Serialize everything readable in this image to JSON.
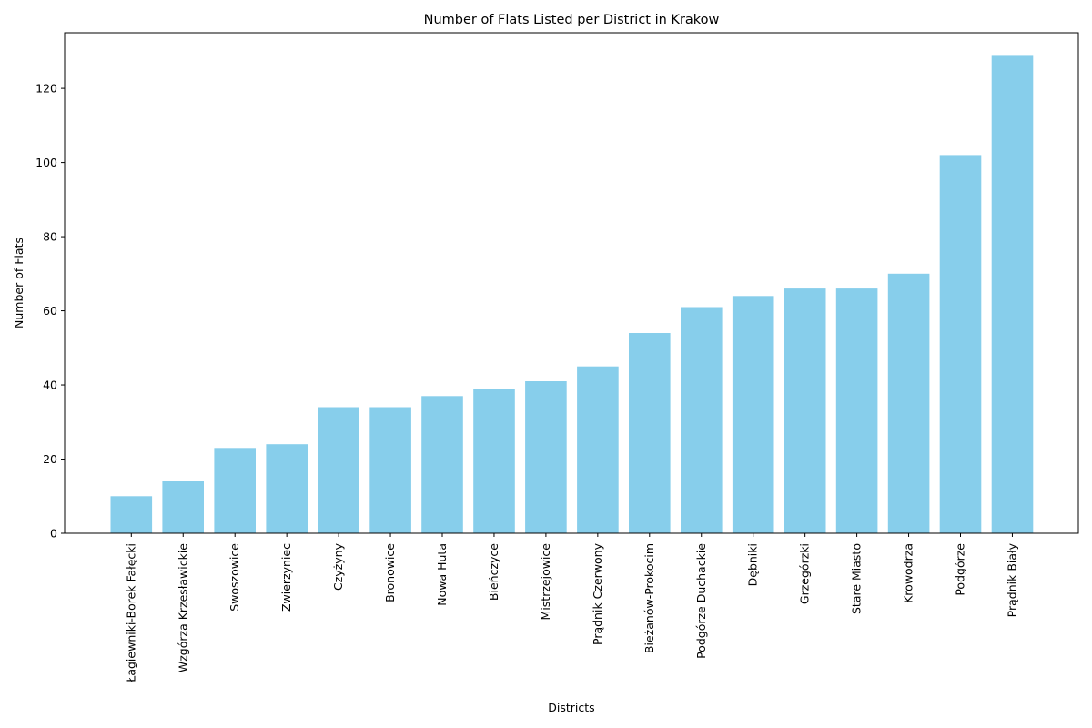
{
  "chart_data": {
    "type": "bar",
    "title": "Number of Flats Listed per District in Krakow",
    "xlabel": "Districts",
    "ylabel": "Number of Flats",
    "ylim": [
      0,
      135
    ],
    "yticks": [
      0,
      20,
      40,
      60,
      80,
      100,
      120
    ],
    "bar_color": "#87ceeb",
    "grid": false,
    "categories": [
      "Łagiewniki-Borek Fałęcki",
      "Wzgórza Krzesławickie",
      "Swoszowice",
      "Zwierzyniec",
      "Czyżyny",
      "Bronowice",
      "Nowa Huta",
      "Bieńczyce",
      "Mistrzejowice",
      "Prądnik Czerwony",
      "Bieżanów-Prokocim",
      "Podgórze Duchackie",
      "Dębniki",
      "Grzegórzki",
      "Stare Miasto",
      "Krowodrza",
      "Podgórze",
      "Prądnik Biały"
    ],
    "values": [
      10,
      14,
      23,
      24,
      34,
      34,
      37,
      39,
      41,
      45,
      54,
      61,
      64,
      66,
      66,
      70,
      102,
      129
    ]
  }
}
